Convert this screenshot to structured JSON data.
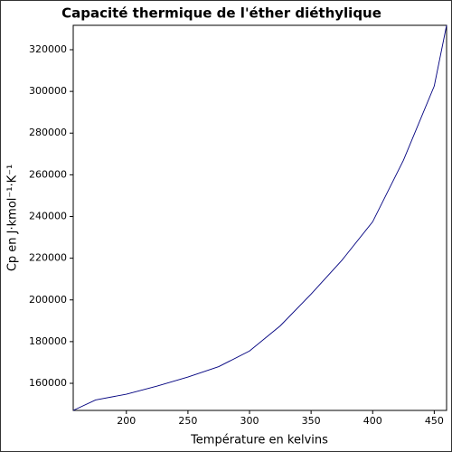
{
  "chart_data": {
    "type": "line",
    "title": "Capacité thermique de l'éther diéthylique",
    "x_label": "Température en kelvins",
    "y_label": "Cp en J·kmol⁻¹·K⁻¹",
    "x": [
      156.85,
      175,
      200,
      225,
      250,
      275,
      300,
      325,
      350,
      375,
      400,
      425,
      450,
      460
    ],
    "series": [
      {
        "name": "Cp",
        "color": "#00007f",
        "values": [
          147000,
          152000,
          154800,
          158700,
          163000,
          168000,
          175500,
          187600,
          202800,
          219000,
          237500,
          267000,
          302600,
          331700
        ]
      }
    ],
    "xlim": [
      156.85,
      460
    ],
    "ylim": [
      147000,
      331700
    ],
    "xticks": [
      200,
      250,
      300,
      350,
      400,
      450
    ],
    "yticks": [
      160000,
      180000,
      200000,
      220000,
      240000,
      260000,
      280000,
      300000,
      320000
    ]
  }
}
